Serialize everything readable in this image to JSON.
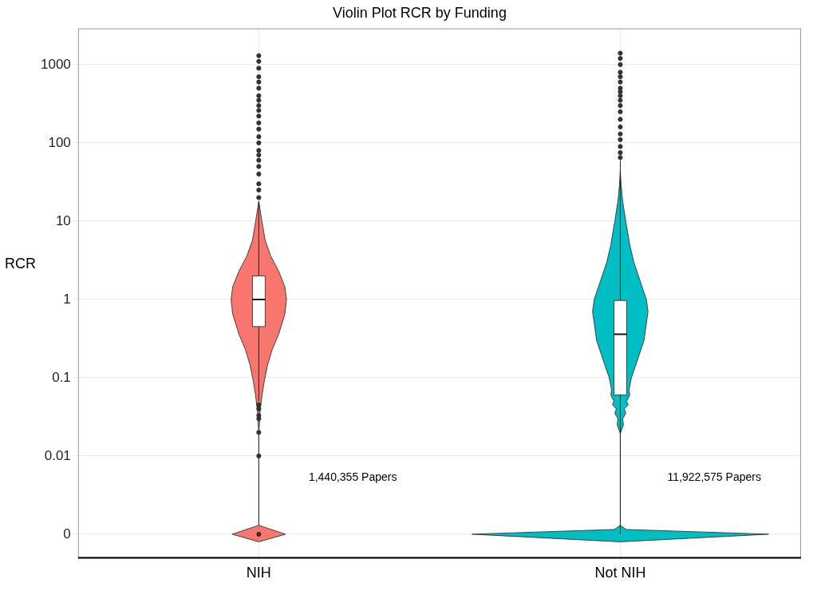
{
  "chart_data": {
    "type": "violin",
    "title": "Violin Plot RCR by Funding",
    "y_label": "RCR",
    "categories": [
      "NIH",
      "Not NIH"
    ],
    "log": "y",
    "grid": true,
    "ylim": [
      0.0005,
      2900
    ],
    "yticks": [
      {
        "value": 0.001,
        "label": "0"
      },
      0.01,
      0.1,
      1,
      10,
      100,
      1000
    ],
    "series": [
      {
        "color": "#f8766d",
        "density": {
          "y": [
            0.0008,
            0.001,
            0.0013,
            0.02,
            0.023,
            0.036,
            0.058,
            0.09,
            0.145,
            0.23,
            0.36,
            0.65,
            1,
            1.45,
            2.3,
            3.6,
            5.7,
            10,
            18
          ],
          "width": [
            0,
            0.18,
            0,
            0,
            0.003,
            0.008,
            0.021,
            0.037,
            0.059,
            0.091,
            0.134,
            0.176,
            0.187,
            0.176,
            0.134,
            0.08,
            0.043,
            0.021,
            0
          ]
        },
        "box": {
          "whisker_low": 0.05,
          "q1": 0.45,
          "median": 1,
          "q3": 2,
          "whisker_high": 18
        },
        "outliers": [
          0.001,
          0.01,
          0.02,
          0.03,
          0.033,
          0.04,
          0.045,
          20,
          25,
          30,
          40,
          50,
          60,
          70,
          80,
          100,
          120,
          150,
          180,
          220,
          260,
          300,
          350,
          400,
          500,
          600,
          700,
          900,
          1100,
          1300
        ],
        "annotation": "1,440,355 Papers"
      },
      {
        "color": "#00bfc4",
        "density": {
          "y": [
            0.0008,
            0.001,
            0.00115,
            0.0013,
            0.019,
            0.02,
            0.025,
            0.03,
            0.035,
            0.04,
            0.045,
            0.05,
            0.06,
            0.07,
            0.1,
            0.15,
            0.3,
            0.7,
            1,
            3,
            5,
            10,
            18,
            30,
            45
          ],
          "width": [
            0,
            1.0,
            0.04,
            0,
            0,
            0.003,
            0.021,
            0.016,
            0.037,
            0.027,
            0.053,
            0.043,
            0.064,
            0.059,
            0.075,
            0.107,
            0.16,
            0.187,
            0.176,
            0.091,
            0.064,
            0.037,
            0.016,
            0.005,
            0
          ]
        },
        "box": {
          "whisker_low": 0.001,
          "q1": 0.06,
          "median": 0.36,
          "q3": 0.97,
          "whisker_high": 60
        },
        "outliers": [
          65,
          75,
          90,
          110,
          130,
          160,
          200,
          250,
          300,
          350,
          400,
          450,
          500,
          600,
          700,
          800,
          1000,
          1200,
          1400
        ],
        "annotation": "11,922,575 Papers"
      }
    ]
  }
}
